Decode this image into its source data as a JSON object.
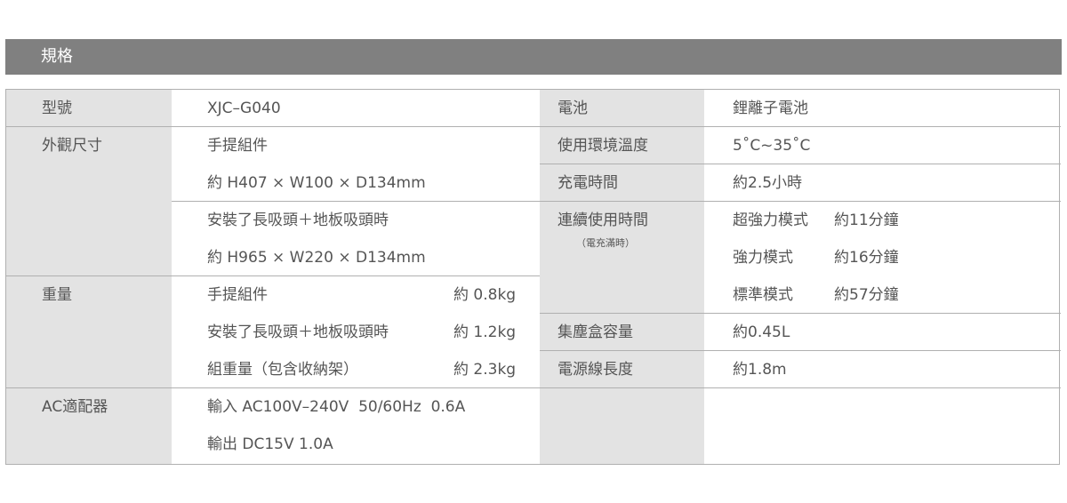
{
  "section_title": "規格",
  "left": {
    "model": {
      "label": "型號",
      "value": "XJC–G040"
    },
    "dimensions": {
      "label": "外觀尺寸",
      "lines": [
        "手提組件",
        "約 H407 × W100 × D134mm",
        "安裝了長吸頭＋地板吸頭時",
        "約 H965 × W220 × D134mm"
      ]
    },
    "weight": {
      "label": "重量",
      "items": [
        {
          "name": "手提組件",
          "value": "約 0.8kg"
        },
        {
          "name": "安裝了長吸頭＋地板吸頭時",
          "value": "約 1.2kg"
        },
        {
          "name": "組重量（包含收納架）",
          "value": "約 2.3kg"
        }
      ]
    },
    "adapter": {
      "label": "AC適配器",
      "lines": [
        "輸入 AC100V–240V  50/60Hz  0.6A",
        "輸出 DC15V 1.0A"
      ]
    }
  },
  "right": {
    "battery": {
      "label": "電池",
      "value": "鋰離子電池"
    },
    "temperature": {
      "label": "使用環境溫度",
      "value": "5˚C~35˚C"
    },
    "charge_time": {
      "label": "充電時間",
      "value": "約2.5小時"
    },
    "runtime": {
      "label": "連續使用時間",
      "note": "（電充滿時）",
      "modes": [
        {
          "name": "超強力模式",
          "value": "約11分鐘"
        },
        {
          "name": "強力模式",
          "value": "約16分鐘"
        },
        {
          "name": "標準模式",
          "value": "約57分鐘"
        }
      ]
    },
    "dustbin": {
      "label": "集塵盒容量",
      "value": "約0.45L"
    },
    "cord": {
      "label": "電源線長度",
      "value": "約1.8m"
    }
  }
}
